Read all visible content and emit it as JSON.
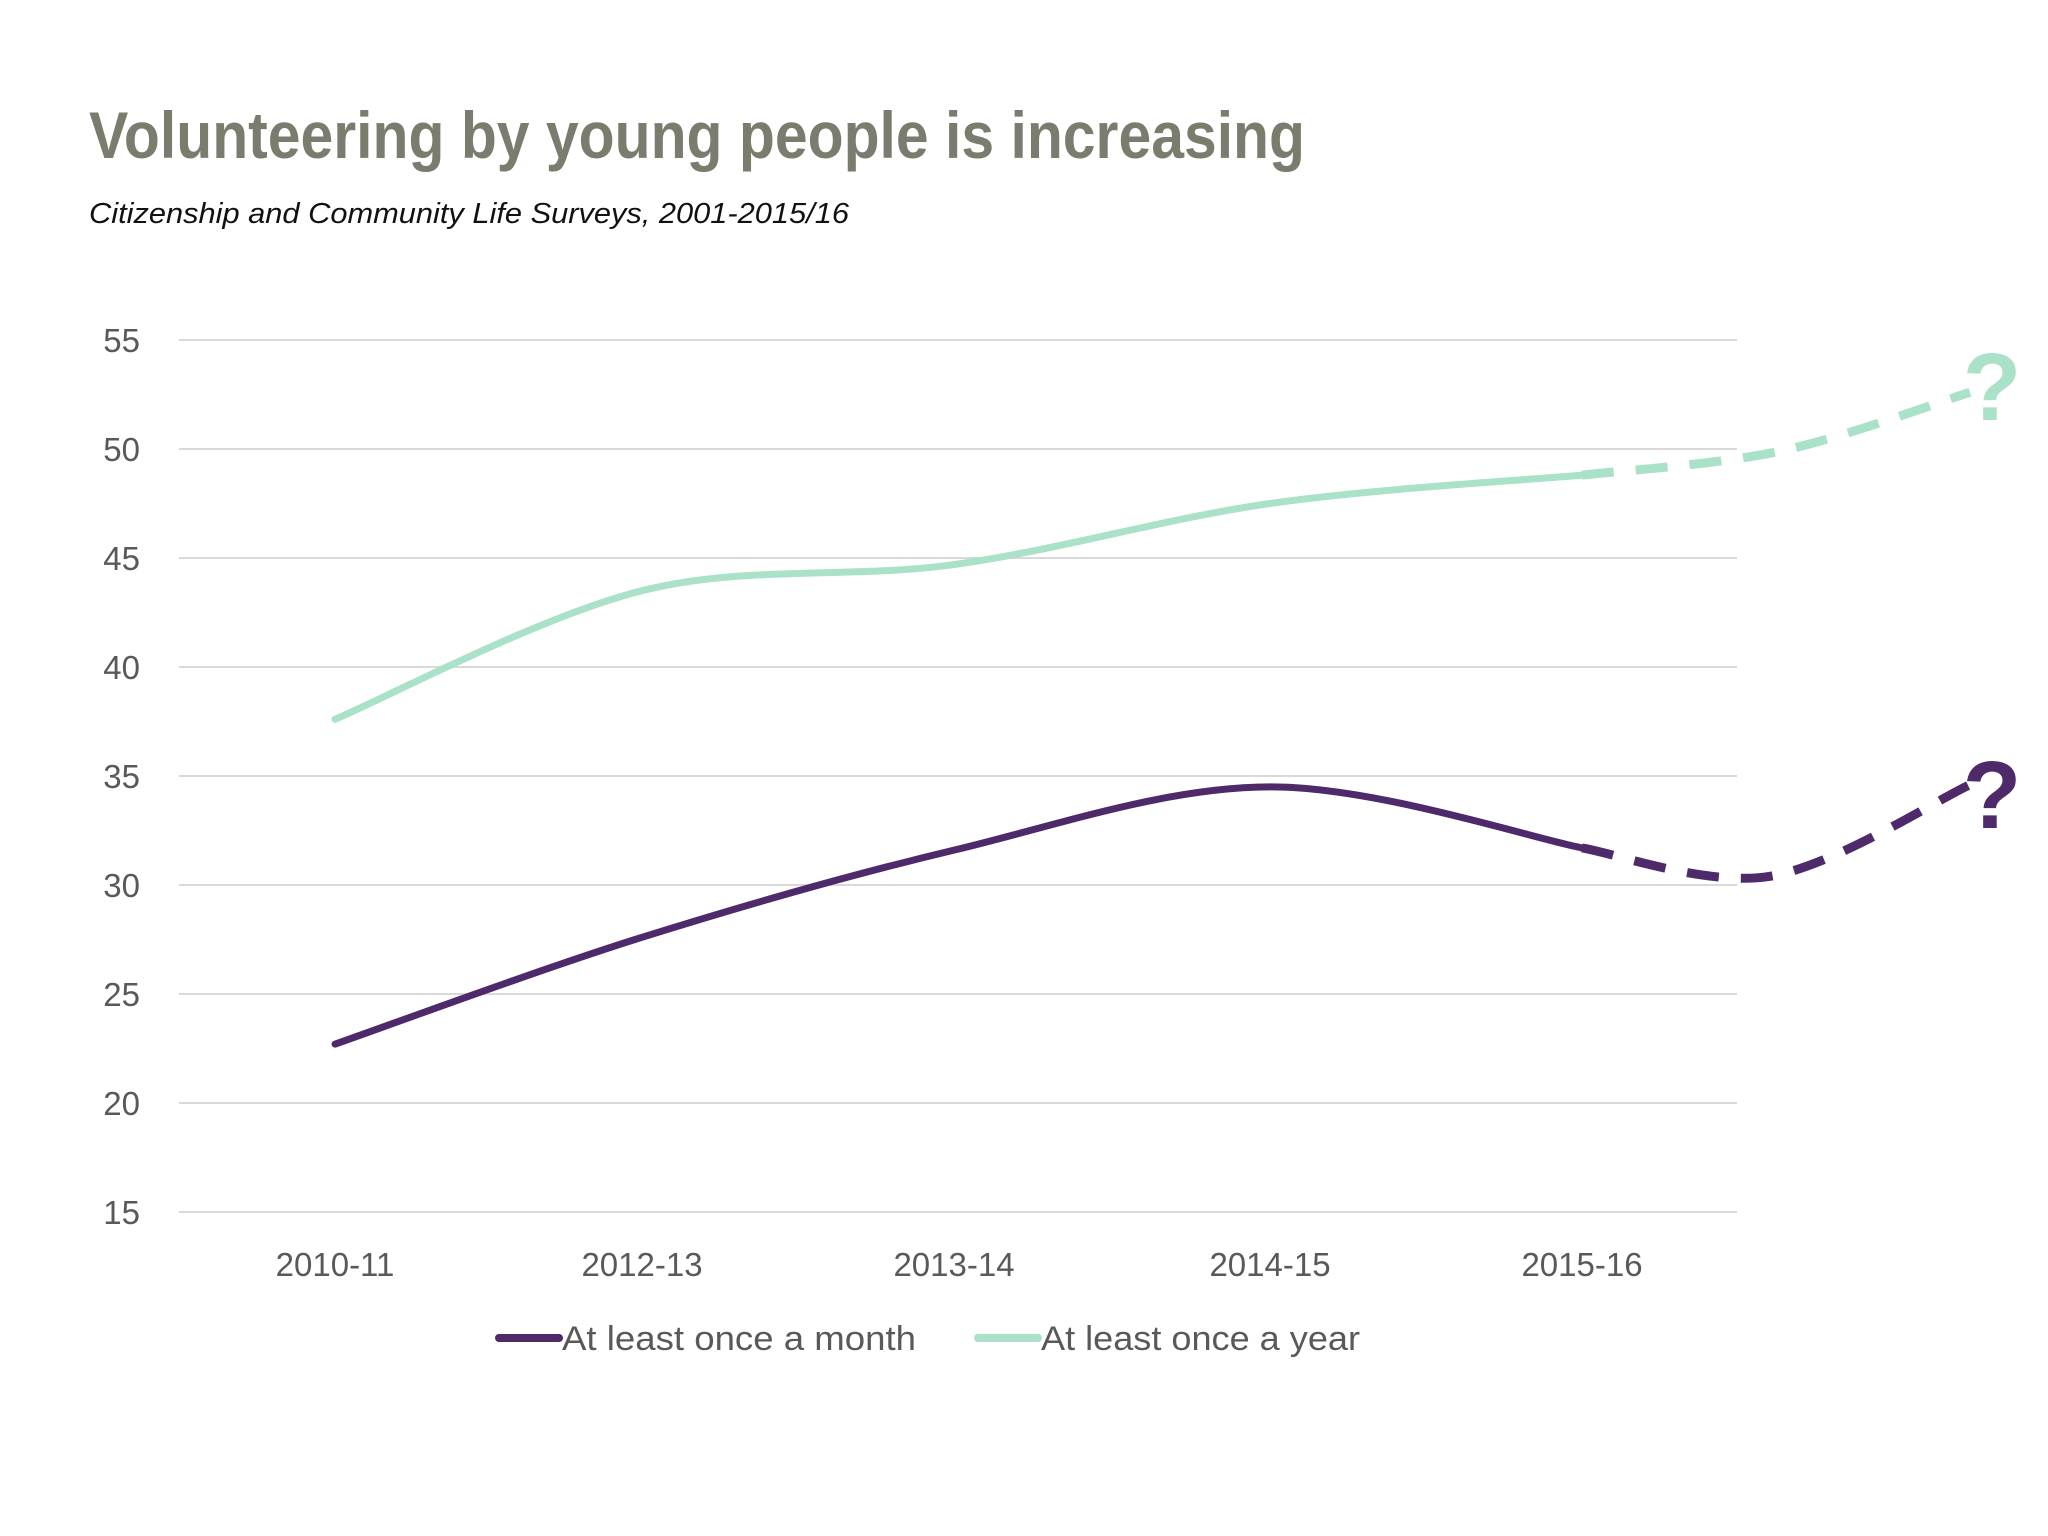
{
  "chart_data": {
    "type": "line",
    "title": "Volunteering by young people is increasing",
    "subtitle": "Citizenship and Community Life Surveys, 2001-2015/16",
    "xlabel": "",
    "ylabel": "",
    "categories": [
      "2010-11",
      "2012-13",
      "2013-14",
      "2014-15",
      "2015-16"
    ],
    "yticks": [
      15,
      20,
      25,
      30,
      35,
      40,
      45,
      50,
      55
    ],
    "ylim": [
      15,
      55
    ],
    "grid": "horizontal",
    "smooth": true,
    "legend_position": "bottom",
    "series": [
      {
        "name": "At least once a month",
        "color": "#4e2a6a",
        "values": [
          22.7,
          27.6,
          31.6,
          34.5,
          31.7
        ]
      },
      {
        "name": "At least once a year",
        "color": "#a9e2c8",
        "values": [
          37.6,
          43.5,
          44.7,
          47.5,
          48.8
        ]
      }
    ],
    "annotations": [
      {
        "text": "?",
        "color": "#a9e2c8",
        "series": "At least once a year",
        "style": "dashed projection"
      },
      {
        "text": "?",
        "color": "#4e2a6a",
        "series": "At least once a month",
        "style": "dashed projection"
      }
    ],
    "colors": {
      "title": "#7a7c6e",
      "grid": "#d9d9d9",
      "tick": "#595959"
    }
  }
}
